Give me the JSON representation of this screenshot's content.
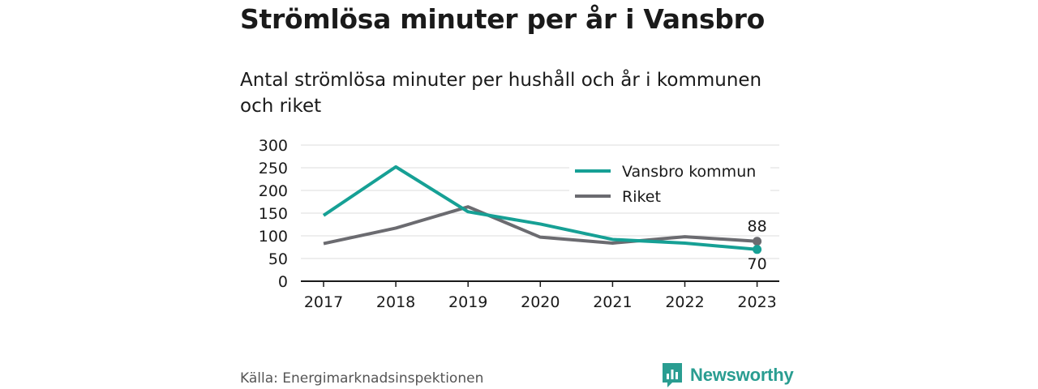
{
  "title": "Strömlösa minuter per år i Vansbro",
  "subtitle": "Antal strömlösa minuter per hushåll och år i kommunen och riket",
  "source": "Källa: Energimarknadsinspektionen",
  "brand": {
    "name": "Newsworthy",
    "icon": "newsworthy-logo-icon",
    "color": "#2a9d91"
  },
  "chart_data": {
    "type": "line",
    "x": [
      "2017",
      "2018",
      "2019",
      "2020",
      "2021",
      "2022",
      "2023"
    ],
    "ylim": [
      0,
      300
    ],
    "yticks": [
      0,
      50,
      100,
      150,
      200,
      250,
      300
    ],
    "grid": true,
    "legend": "top-right",
    "series": [
      {
        "name": "Vansbro kommun",
        "color": "#16a095",
        "values": [
          145,
          252,
          153,
          126,
          92,
          84,
          70
        ],
        "end_label": "70"
      },
      {
        "name": "Riket",
        "color": "#6b6b70",
        "values": [
          83,
          117,
          164,
          97,
          84,
          98,
          88
        ],
        "end_label": "88"
      }
    ]
  }
}
